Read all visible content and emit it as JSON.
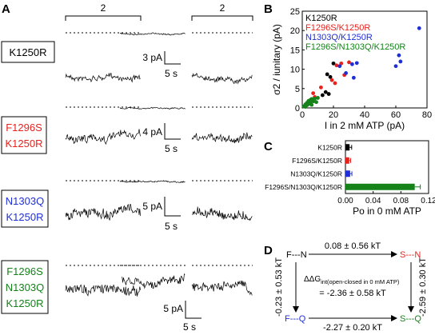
{
  "panel_a": {
    "letter": "A",
    "bracket_label": "2",
    "rows": [
      {
        "lines": [
          "K1250R"
        ],
        "color": "#000000",
        "scale_y": "3 pA",
        "scale_x": "5 s"
      },
      {
        "lines": [
          "F1296S",
          "K1250R"
        ],
        "color": "#e8211c",
        "scale_y": "4 pA",
        "scale_x": "5 s"
      },
      {
        "lines": [
          "N1303Q",
          "K1250R"
        ],
        "color": "#1f2fd6",
        "scale_y": "5 pA",
        "scale_x": "5 s"
      },
      {
        "lines": [
          "F1296S",
          "N1303Q",
          "K1250R"
        ],
        "color": "#15821a",
        "scale_y": "5 pA",
        "scale_x": "5 s"
      }
    ]
  },
  "chart_data": [
    {
      "panel": "B",
      "type": "scatter",
      "xlabel": "I in 2 mM ATP (pA)",
      "ylabel": "σ2 / iunitary (pA)",
      "xlim": [
        0,
        80
      ],
      "ylim": [
        0,
        25
      ],
      "xticks": [
        "0",
        "20",
        "40",
        "60",
        "80"
      ],
      "yticks": [
        "0",
        "5",
        "10",
        "15",
        "20",
        "25"
      ],
      "legend": [
        "K1250R",
        "F1296S/K1250R",
        "N1303Q/K1250R",
        "F1296S/N1303Q/K1250R"
      ],
      "legend_position": "top-left",
      "series": [
        {
          "name": "K1250R",
          "color": "#000000",
          "points": [
            [
              13,
              3.3
            ],
            [
              15,
              4.1
            ],
            [
              16,
              8.7
            ],
            [
              18,
              8.0
            ],
            [
              17,
              3.6
            ],
            [
              20,
              11.5
            ]
          ]
        },
        {
          "name": "F1296S/K1250R",
          "color": "#e8211c",
          "points": [
            [
              7,
              3.8
            ],
            [
              8,
              2.8
            ],
            [
              12,
              5.3
            ],
            [
              19,
              7.2
            ],
            [
              21,
              6.4
            ],
            [
              22,
              11.0
            ],
            [
              25,
              11.5
            ],
            [
              27,
              8.5
            ],
            [
              30,
              11.8
            ]
          ]
        },
        {
          "name": "N1303Q/K1250R",
          "color": "#1f2fd6",
          "points": [
            [
              24,
              10.8
            ],
            [
              28,
              9.0
            ],
            [
              32,
              11.3
            ],
            [
              35,
              11.6
            ],
            [
              60,
              10.8
            ],
            [
              62,
              13.6
            ],
            [
              63,
              12.0
            ],
            [
              75,
              20.6
            ],
            [
              33,
              7.8
            ]
          ]
        },
        {
          "name": "F1296S/N1303Q/K1250R",
          "color": "#15821a",
          "points": [
            [
              1,
              0.4
            ],
            [
              2,
              0.9
            ],
            [
              3,
              1.3
            ],
            [
              4,
              1.0
            ],
            [
              5,
              2.0
            ],
            [
              6,
              2.3
            ],
            [
              7,
              1.7
            ],
            [
              8,
              2.4
            ],
            [
              9,
              1.5
            ],
            [
              10,
              2.6
            ],
            [
              3,
              0.7
            ],
            [
              5,
              1.4
            ],
            [
              6,
              0.8
            ],
            [
              2,
              0.3
            ],
            [
              4,
              1.8
            ]
          ]
        }
      ]
    },
    {
      "panel": "C",
      "type": "bar",
      "orientation": "horizontal",
      "categories": [
        "K1250R",
        "F1296S/K1250R",
        "N1303Q/K1250R",
        "F1296S/N1303Q/K1250R"
      ],
      "values": [
        0.006,
        0.0055,
        0.0068,
        0.1
      ],
      "errors": [
        0.003,
        0.002,
        0.0025,
        0.008
      ],
      "colors": [
        "#000000",
        "#e8211c",
        "#1f2fd6",
        "#15821a"
      ],
      "xlabel": "Po in 0 mM ATP",
      "xlim": [
        0,
        0.12
      ],
      "xticks": [
        "0.00",
        "0.04",
        "0.08",
        "0.12"
      ]
    }
  ],
  "panel_b": {
    "letter": "B"
  },
  "panel_c": {
    "letter": "C"
  },
  "panel_d": {
    "letter": "D",
    "states": {
      "top_left": "F---N",
      "top_right": "S---N",
      "bottom_left": "F---Q",
      "bottom_right": "S---Q"
    },
    "edges": {
      "top": "0.08 ± 0.56 kT",
      "bottom": "-2.27 ± 0.20 kT",
      "left": "-0.23 ± 0.53 kT",
      "right": "-2.59 ± 0.30 kT"
    },
    "center_label": "ΔΔG",
    "center_subscript": "int(open-closed in 0 mM ATP)",
    "center_eq": "= -2.36 ± 0.58 kT"
  }
}
